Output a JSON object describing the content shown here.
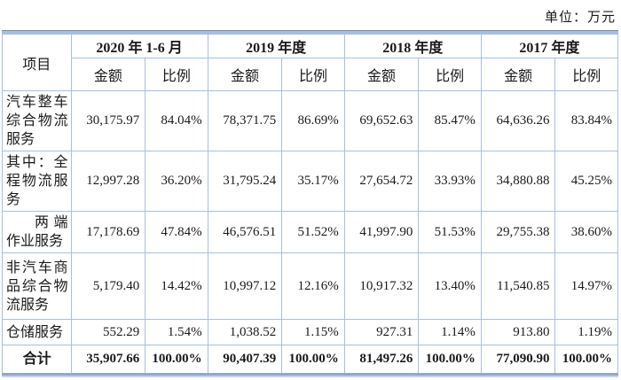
{
  "unit_label": "单位：万元",
  "table": {
    "item_header": "项目",
    "periods": [
      "2020 年 1-6 月",
      "2019 年度",
      "2018 年度",
      "2017 年度"
    ],
    "sub_headers": {
      "amount": "金额",
      "ratio": "比例"
    },
    "rows": [
      {
        "label": "汽车整车综合物流服务",
        "values": [
          "30,175.97",
          "84.04%",
          "78,371.75",
          "86.69%",
          "69,652.63",
          "85.47%",
          "64,636.26",
          "83.84%"
        ]
      },
      {
        "label": "其中：全程物流服务",
        "values": [
          "12,997.28",
          "36.20%",
          "31,795.24",
          "35.17%",
          "27,654.72",
          "33.93%",
          "34,880.88",
          "45.25%"
        ]
      },
      {
        "label": "两端作业服务",
        "values": [
          "17,178.69",
          "47.84%",
          "46,576.51",
          "51.52%",
          "41,997.90",
          "51.53%",
          "29,755.38",
          "38.60%"
        ]
      },
      {
        "label": "非汽车商品综合物流服务",
        "values": [
          "5,179.40",
          "14.42%",
          "10,997.12",
          "12.16%",
          "10,917.32",
          "13.40%",
          "11,540.85",
          "14.97%"
        ]
      },
      {
        "label": "仓储服务",
        "values": [
          "552.29",
          "1.54%",
          "1,038.52",
          "1.15%",
          "927.31",
          "1.14%",
          "913.80",
          "1.19%"
        ]
      }
    ],
    "total": {
      "label": "合计",
      "values": [
        "35,907.66",
        "100.00%",
        "90,407.39",
        "100.00%",
        "81,497.26",
        "100.00%",
        "77,090.90",
        "100.00%"
      ]
    }
  },
  "colors": {
    "grid": "#a7c0dd",
    "top_line": "#7f8b99",
    "top_band": "#a9bedd",
    "bottom_line": "#92a9c9",
    "bottom_shadow": "#c5d4e8",
    "text": "#1a1a1a"
  }
}
